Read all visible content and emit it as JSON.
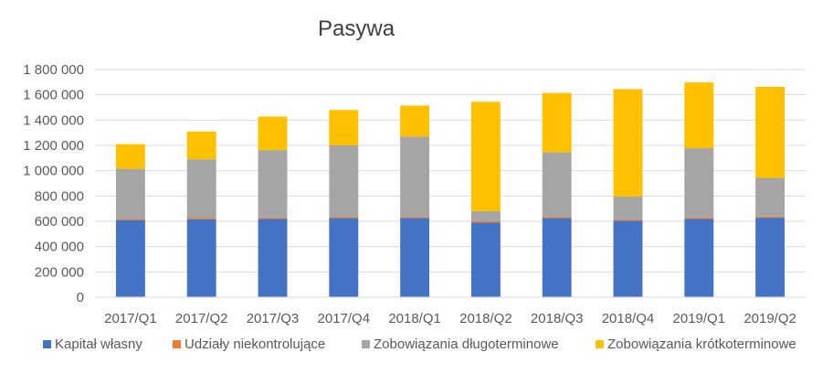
{
  "chart_data": {
    "type": "bar",
    "stacked": true,
    "title": "Pasywa",
    "categories": [
      "2017/Q1",
      "2017/Q2",
      "2017/Q3",
      "2017/Q4",
      "2018/Q1",
      "2018/Q2",
      "2018/Q3",
      "2018/Q4",
      "2019/Q1",
      "2019/Q2"
    ],
    "ylim": [
      0,
      1800000
    ],
    "yticks": [
      0,
      200000,
      400000,
      600000,
      800000,
      1000000,
      1200000,
      1400000,
      1600000,
      1800000
    ],
    "ytick_labels": [
      "0",
      "200 000",
      "400 000",
      "600 000",
      "800 000",
      "1 000 000",
      "1 200 000",
      "1 400 000",
      "1 600 000",
      "1 800 000"
    ],
    "grid": true,
    "legend_position": "bottom",
    "series": [
      {
        "name": "Kapitał własny",
        "color": "#4472C4",
        "values": [
          610000,
          615000,
          618000,
          625000,
          625000,
          590000,
          625000,
          605000,
          618000,
          628000
        ]
      },
      {
        "name": "Udziały niekontrolujące",
        "color": "#ED7D31",
        "values": [
          10000,
          10000,
          10000,
          10000,
          10000,
          10000,
          10000,
          10000,
          10000,
          10000
        ]
      },
      {
        "name": "Zobowiązania długoterminowe",
        "color": "#A5A5A5",
        "values": [
          395000,
          465000,
          535000,
          565000,
          635000,
          80000,
          510000,
          180000,
          550000,
          305000
        ]
      },
      {
        "name": "Zobowiązania krótkoterminowe",
        "color": "#FFC000",
        "values": [
          195000,
          220000,
          265000,
          280000,
          245000,
          865000,
          470000,
          850000,
          520000,
          720000
        ]
      }
    ]
  }
}
